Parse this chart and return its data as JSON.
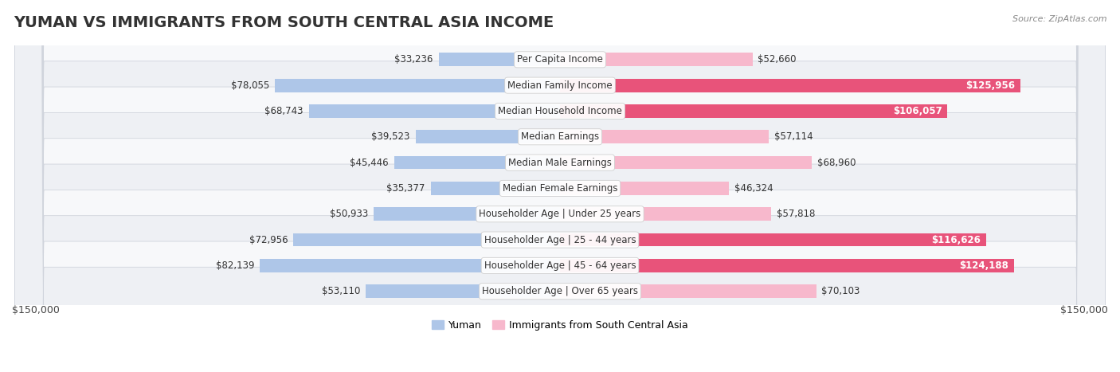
{
  "title": "YUMAN VS IMMIGRANTS FROM SOUTH CENTRAL ASIA INCOME",
  "source": "Source: ZipAtlas.com",
  "categories": [
    "Per Capita Income",
    "Median Family Income",
    "Median Household Income",
    "Median Earnings",
    "Median Male Earnings",
    "Median Female Earnings",
    "Householder Age | Under 25 years",
    "Householder Age | 25 - 44 years",
    "Householder Age | 45 - 64 years",
    "Householder Age | Over 65 years"
  ],
  "yuman_values": [
    33236,
    78055,
    68743,
    39523,
    45446,
    35377,
    50933,
    72956,
    82139,
    53110
  ],
  "immigrant_values": [
    52660,
    125956,
    106057,
    57114,
    68960,
    46324,
    57818,
    116626,
    124188,
    70103
  ],
  "yuman_color_light": "#aec6e8",
  "yuman_color_dark": "#5b9bd5",
  "immigrant_color_light": "#f7b8cc",
  "immigrant_color_dark": "#e8537a",
  "yuman_label": "Yuman",
  "immigrant_label": "Immigrants from South Central Asia",
  "x_max": 150000,
  "x_label_left": "$150,000",
  "x_label_right": "$150,000",
  "background_color": "#ffffff",
  "title_fontsize": 14,
  "label_fontsize": 8.5,
  "value_fontsize": 8.5,
  "dark_threshold": 95000,
  "row_colors": [
    "#f7f8fa",
    "#eef0f4"
  ]
}
